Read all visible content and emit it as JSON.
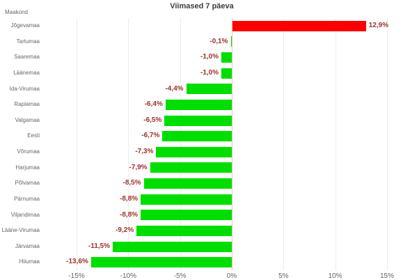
{
  "chart_data": {
    "type": "bar",
    "orientation": "horizontal",
    "title": "Viimased 7 päeva",
    "axis_title": "Maakond",
    "categories": [
      "Jõgevamaa",
      "Tartumaa",
      "Saaremaa",
      "Läänemaa",
      "Ida-Virumaa",
      "Raplamaa",
      "Valgamaa",
      "Eesti",
      "Võrumaa",
      "Harjumaa",
      "Põlvamaa",
      "Pärnumaa",
      "Viljandimaa",
      "Lääne-Virumaa",
      "Järvamaa",
      "Hiiumaa"
    ],
    "values": [
      12.9,
      -0.1,
      -1.0,
      -1.0,
      -4.4,
      -6.4,
      -6.5,
      -6.7,
      -7.3,
      -7.9,
      -8.5,
      -8.8,
      -8.8,
      -9.2,
      -11.5,
      -13.6
    ],
    "value_labels": [
      "12,9%",
      "-0,1%",
      "-1,0%",
      "-1,0%",
      "-4,4%",
      "-6,4%",
      "-6,5%",
      "-6,7%",
      "-7,3%",
      "-7,9%",
      "-8,5%",
      "-8,8%",
      "-8,8%",
      "-9,2%",
      "-11,5%",
      "-13,6%"
    ],
    "x_tick_labels": [
      "-15%",
      "-10%",
      "-5%",
      "0%",
      "5%",
      "10%",
      "15%"
    ],
    "x_tick_values": [
      -15,
      -10,
      -5,
      0,
      5,
      10,
      15
    ],
    "xlim": [
      -16.5,
      15.5
    ],
    "grid": true,
    "legend": "none",
    "colors": {
      "bar_positive": "#fb0000",
      "bar_negative": "#00de00",
      "value_label": "#9e312c",
      "axis_text": "#666666",
      "title_text": "#3c3c3c",
      "gridline": "#ececec",
      "baseline": "#f5bcb4",
      "background": "#ffffff"
    }
  }
}
